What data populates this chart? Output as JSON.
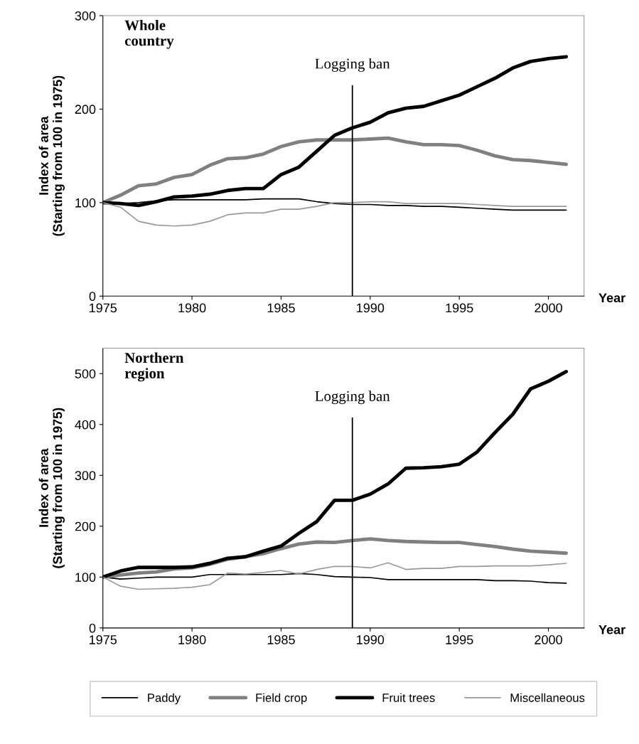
{
  "chart_data": [
    {
      "type": "line",
      "title": "Whole country",
      "xlabel": "Year",
      "ylabel": "Index of area\n(Starting from 100 in 1975)",
      "x": [
        1975,
        1976,
        1977,
        1978,
        1979,
        1980,
        1981,
        1982,
        1983,
        1984,
        1985,
        1986,
        1987,
        1988,
        1989,
        1990,
        1991,
        1992,
        1993,
        1994,
        1995,
        1996,
        1997,
        1998,
        1999,
        2000,
        2001
      ],
      "series": [
        {
          "color": "#000000",
          "values": [
            100,
            99,
            100,
            102,
            103,
            103,
            103,
            103,
            103,
            104,
            104,
            104,
            101,
            99,
            98,
            98,
            97,
            97,
            96,
            96,
            95,
            94,
            93,
            92,
            92,
            92,
            92
          ]
        },
        {
          "color": "#808080",
          "values": [
            100,
            108,
            118,
            120,
            127,
            130,
            140,
            147,
            148,
            152,
            160,
            165,
            167,
            167,
            167,
            168,
            169,
            165,
            162,
            162,
            161,
            156,
            150,
            146,
            145,
            143,
            141
          ]
        },
        {
          "color": "#000000",
          "values": [
            100,
            99,
            97,
            101,
            106,
            107,
            109,
            113,
            115,
            115,
            130,
            138,
            155,
            172,
            180,
            186,
            196,
            201,
            203,
            209,
            215,
            224,
            233,
            244,
            251,
            254,
            256
          ]
        },
        {
          "color": "#999999",
          "values": [
            100,
            95,
            80,
            76,
            75,
            76,
            80,
            87,
            89,
            89,
            93,
            93,
            96,
            100,
            100,
            101,
            101,
            99,
            99,
            99,
            99,
            98,
            97,
            96,
            96,
            96,
            96
          ]
        }
      ],
      "xlim": [
        1975,
        2002
      ],
      "xticks": [
        1975,
        1980,
        1985,
        1990,
        1995,
        2000
      ],
      "ylim": [
        0,
        300
      ],
      "yticks": [
        0,
        100,
        200,
        300
      ],
      "ref_lines": [
        {
          "axis": "x",
          "value": 1989,
          "label": "Logging ban",
          "color": "#000000"
        }
      ],
      "grid": false
    },
    {
      "type": "line",
      "title": "Northern region",
      "xlabel": "Year",
      "ylabel": "Index of area\n(Starting from 100 in 1975)",
      "x": [
        1975,
        1976,
        1977,
        1978,
        1979,
        1980,
        1981,
        1982,
        1983,
        1984,
        1985,
        1986,
        1987,
        1988,
        1989,
        1990,
        1991,
        1992,
        1993,
        1994,
        1995,
        1996,
        1997,
        1998,
        1999,
        2000,
        2001
      ],
      "series": [
        {
          "name": "Paddy",
          "color": "#000000",
          "values": [
            100,
            96,
            98,
            100,
            100,
            100,
            105,
            105,
            105,
            105,
            105,
            107,
            105,
            101,
            100,
            99,
            95,
            95,
            95,
            95,
            95,
            95,
            93,
            93,
            92,
            89,
            88
          ]
        },
        {
          "name": "Field crop",
          "color": "#808080",
          "values": [
            100,
            104,
            108,
            110,
            116,
            118,
            125,
            135,
            140,
            146,
            156,
            165,
            169,
            168,
            172,
            175,
            172,
            170,
            169,
            168,
            168,
            164,
            160,
            155,
            151,
            149,
            147
          ]
        },
        {
          "name": "Fruit trees",
          "color": "#000000",
          "values": [
            100,
            112,
            119,
            119,
            119,
            120,
            127,
            137,
            140,
            151,
            161,
            186,
            209,
            251,
            251,
            263,
            283,
            314,
            315,
            317,
            322,
            346,
            384,
            420,
            470,
            485,
            504
          ]
        },
        {
          "name": "Miscellaneous",
          "color": "#999999",
          "values": [
            100,
            82,
            76,
            77,
            78,
            80,
            85,
            108,
            106,
            109,
            113,
            106,
            115,
            121,
            121,
            118,
            128,
            115,
            117,
            117,
            121,
            121,
            122,
            122,
            122,
            124,
            127
          ]
        }
      ],
      "xlim": [
        1975,
        2002
      ],
      "xticks": [
        1975,
        1980,
        1985,
        1990,
        1995,
        2000
      ],
      "ylim": [
        0,
        550
      ],
      "yticks": [
        0,
        100,
        200,
        300,
        400,
        500
      ],
      "ref_lines": [
        {
          "axis": "x",
          "value": 1989,
          "label": "Logging ban",
          "color": "#000000"
        }
      ],
      "grid": false,
      "legend": "bottom"
    }
  ]
}
